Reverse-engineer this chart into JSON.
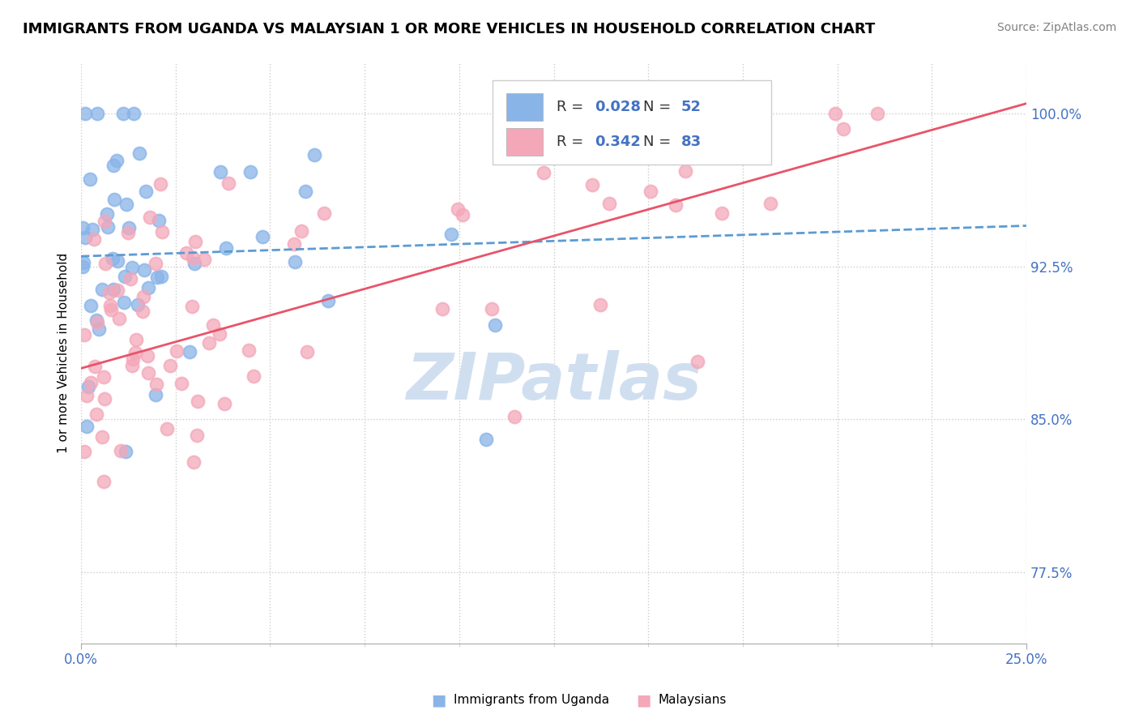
{
  "title": "IMMIGRANTS FROM UGANDA VS MALAYSIAN 1 OR MORE VEHICLES IN HOUSEHOLD CORRELATION CHART",
  "source": "Source: ZipAtlas.com",
  "xmin": 0.0,
  "xmax": 25.0,
  "ymin": 74.0,
  "ymax": 102.5,
  "yticks": [
    77.5,
    85.0,
    92.5,
    100.0
  ],
  "blue_R": 0.028,
  "blue_N": 52,
  "pink_R": 0.342,
  "pink_N": 83,
  "blue_color": "#89b4e8",
  "pink_color": "#f4a7b9",
  "blue_line_color": "#5b9bd5",
  "pink_line_color": "#e8546a",
  "watermark_color": "#d0dff0",
  "background_color": "#ffffff",
  "title_fontsize": 13,
  "source_fontsize": 10
}
